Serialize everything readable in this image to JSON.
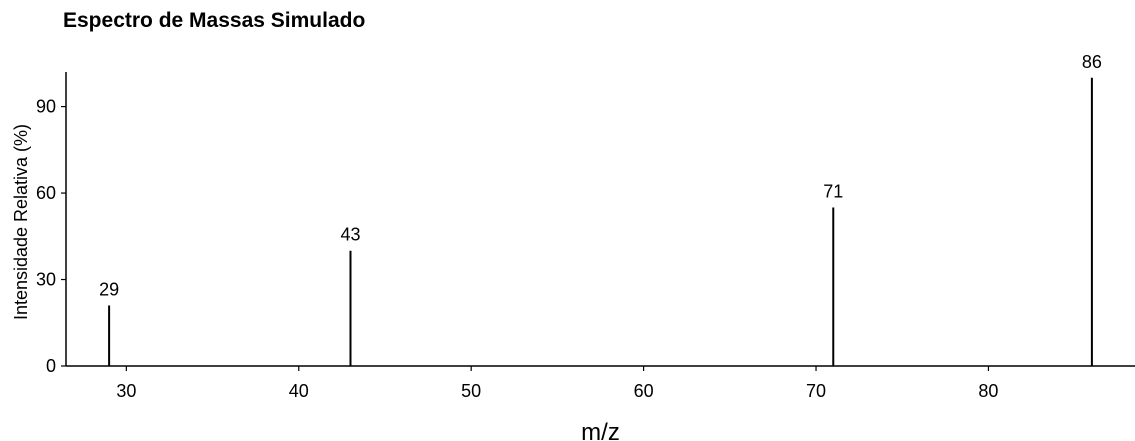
{
  "chart_data": {
    "type": "bar",
    "title": "Espectro de Massas Simulado",
    "xlabel": "m/z",
    "ylabel": "Intensidade Relativa (%)",
    "xlim": [
      26.5,
      88.5
    ],
    "ylim": [
      0,
      102
    ],
    "xticks": [
      30,
      40,
      50,
      60,
      70,
      80
    ],
    "yticks": [
      0,
      30,
      60,
      90
    ],
    "grid": false,
    "legend": "none",
    "x": [
      29,
      43,
      71,
      86
    ],
    "values": [
      21,
      40,
      55,
      100
    ],
    "peak_labels": [
      "29",
      "43",
      "71",
      "86"
    ],
    "color": "#000000"
  }
}
